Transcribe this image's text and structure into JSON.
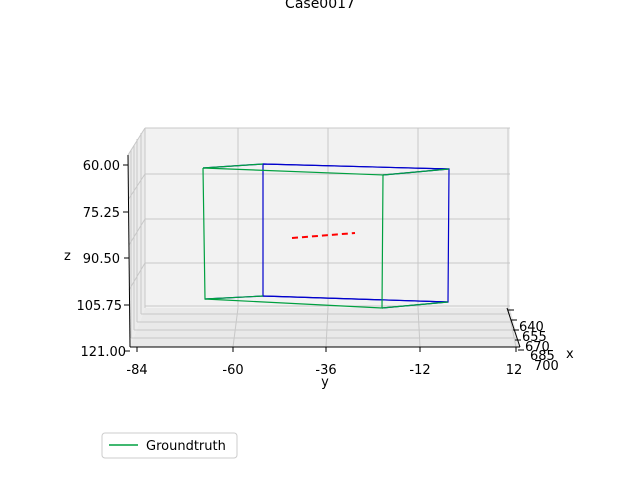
{
  "chart_data": {
    "type": "3d-line",
    "title": "Case0017",
    "xlabel": "x",
    "ylabel": "y",
    "zlabel": "z",
    "x_ticks": [
      "640",
      "655",
      "670",
      "685",
      "700"
    ],
    "y_ticks": [
      "-84",
      "-60",
      "-36",
      "-12",
      "12"
    ],
    "z_ticks": [
      "60.00",
      "75.25",
      "90.50",
      "105.75",
      "121.00"
    ],
    "grid": true,
    "legend": {
      "placement": "lower-left",
      "entries": [
        {
          "label": "Groundtruth",
          "color": "#00a040"
        }
      ]
    },
    "colors": {
      "groundtruth": "#00a040",
      "box": "#0000cc",
      "dashed": "#ff0000"
    }
  }
}
